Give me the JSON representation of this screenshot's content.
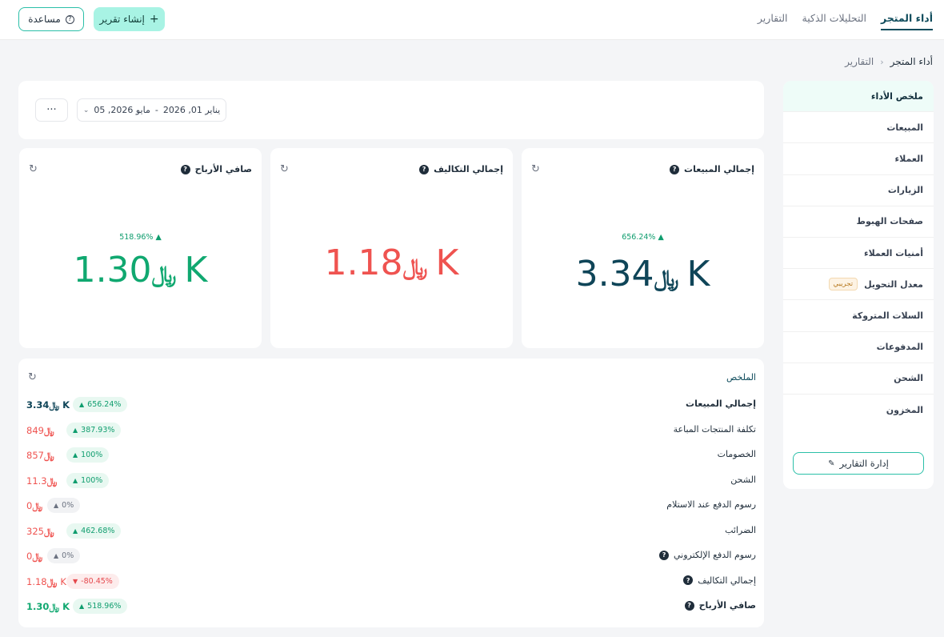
{
  "nav": {
    "tabs": [
      {
        "label": "أداء المتجر"
      },
      {
        "label": "التحليلات الذكية"
      },
      {
        "label": "التقارير"
      }
    ],
    "create_label": "إنشاء تقرير",
    "help_label": "مساعدة"
  },
  "breadcrumb": {
    "current": "أداء المتجر",
    "parent": "التقارير"
  },
  "sidebar": {
    "items": [
      {
        "label": "ملخص الأداء"
      },
      {
        "label": "المبيعات"
      },
      {
        "label": "العملاء"
      },
      {
        "label": "الزيارات"
      },
      {
        "label": "صفحات الهبوط"
      },
      {
        "label": "أمنيات العملاء"
      },
      {
        "label": "معدل التحويل",
        "badge": "تجريبي"
      },
      {
        "label": "السلات المتروكة"
      },
      {
        "label": "المدفوعات"
      },
      {
        "label": "الشحن"
      },
      {
        "label": "المخزون"
      }
    ],
    "manage_label": "إدارة التقارير"
  },
  "filters": {
    "date_from": "يناير 01, 2026",
    "date_sep": "-",
    "date_to": "مايو 2026, 05",
    "more_label": "···"
  },
  "currency_symbol": "﷼",
  "kpis": [
    {
      "title": "صافي الأرباح",
      "change": "518.96%",
      "value": "1.30K",
      "color": "#10a870"
    },
    {
      "title": "إجمالي التكاليف",
      "change": "",
      "value": "1.18K",
      "color": "#ef5350"
    },
    {
      "title": "إجمالي المبيعات",
      "change": "656.24%",
      "value": "3.34K",
      "color": "#0f4558"
    }
  ],
  "summary": {
    "title": "الملخص",
    "rows": [
      {
        "label": "إجمالي المبيعات",
        "value": "3.34K",
        "change": "656.24%",
        "trend": "up",
        "color": "#0f4558",
        "bold": true,
        "help": false
      },
      {
        "label": "تكلفة المنتجات المباعة",
        "value": "849",
        "change": "387.93%",
        "trend": "up",
        "color": "#ef5350",
        "bold": false,
        "help": false
      },
      {
        "label": "الخصومات",
        "value": "857",
        "change": "100%",
        "trend": "up",
        "color": "#ef5350",
        "bold": false,
        "help": false
      },
      {
        "label": "الشحن",
        "value": "11.3",
        "change": "100%",
        "trend": "up",
        "color": "#ef5350",
        "bold": false,
        "help": false
      },
      {
        "label": "رسوم الدفع عند الاستلام",
        "value": "0",
        "change": "0%",
        "trend": "flat",
        "color": "#ef5350",
        "bold": false,
        "help": false
      },
      {
        "label": "الضرائب",
        "value": "325",
        "change": "462.68%",
        "trend": "up",
        "color": "#ef5350",
        "bold": false,
        "help": false
      },
      {
        "label": "رسوم الدفع الإلكتروني",
        "value": "0",
        "change": "0%",
        "trend": "flat",
        "color": "#ef5350",
        "bold": false,
        "help": true
      },
      {
        "label": "إجمالي التكاليف",
        "value": "1.18K",
        "change": "-80.45%",
        "trend": "down",
        "color": "#ef5350",
        "bold": false,
        "help": true
      },
      {
        "label": "صافي الأرباح",
        "value": "1.30K",
        "change": "518.96%",
        "trend": "up",
        "color": "#10a870",
        "bold": true,
        "help": true
      }
    ]
  }
}
